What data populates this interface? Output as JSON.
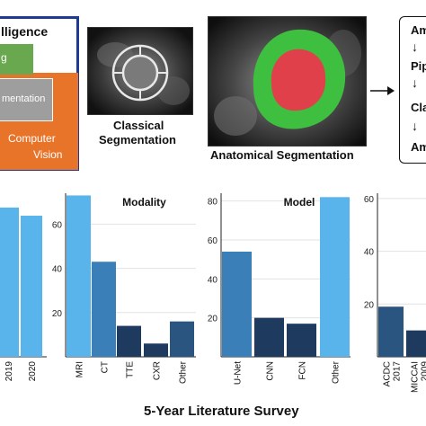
{
  "ai_box": {
    "title_partial": "lligence",
    "ml_partial": "g",
    "dl_partial": "mentation",
    "cv_line1": "Computer",
    "cv_line2": "Vision",
    "colors": {
      "border": "#1f3a93",
      "ml": "#6aa84f",
      "dl": "#9e9e9e",
      "cv": "#e8742a"
    }
  },
  "images": {
    "classical_caption_1": "Classical",
    "classical_caption_2": "Segmentation",
    "anatomical_caption": "Anatomical Segmentation",
    "colors": {
      "myocardium": "#3fbf3f",
      "cavity": "#e0404a"
    }
  },
  "pipeline": {
    "steps": [
      "Am",
      "Pip",
      "Cla",
      "Am"
    ],
    "arrow": "↓"
  },
  "survey_title": "5-Year Literature Survey",
  "chart_data": [
    {
      "type": "bar",
      "title": "",
      "categories": [
        "2019",
        "2020"
      ],
      "values": [
        73,
        69
      ],
      "ylim": [
        0,
        80
      ],
      "colors": [
        "#5ab4ec",
        "#5ab4ec"
      ]
    },
    {
      "type": "bar",
      "title": "Modality",
      "categories": [
        "MRI",
        "CT",
        "TTE",
        "CXR",
        "Other"
      ],
      "values": [
        73,
        43,
        14,
        6,
        16
      ],
      "ylim": [
        0,
        74
      ],
      "yticks": [
        20,
        40,
        60
      ],
      "colors": [
        "#5ab4ec",
        "#3a7fb8",
        "#1f3a5f",
        "#1f3a5f",
        "#2a5580"
      ]
    },
    {
      "type": "bar",
      "title": "Model",
      "categories": [
        "U-Net",
        "CNN",
        "FCN",
        "Other"
      ],
      "values": [
        54,
        20,
        17,
        82
      ],
      "ylim": [
        0,
        84
      ],
      "yticks": [
        20,
        40,
        60,
        80
      ],
      "colors": [
        "#3a7fb8",
        "#1f3a5f",
        "#1f3a5f",
        "#5ab4ec"
      ]
    },
    {
      "type": "bar",
      "title": "",
      "categories": [
        "ACDC 2017",
        "MICCAI 2009"
      ],
      "values": [
        19,
        10
      ],
      "ylim": [
        0,
        62
      ],
      "yticks": [
        20,
        40,
        60
      ],
      "colors": [
        "#2a5580",
        "#1f3a5f"
      ]
    }
  ]
}
